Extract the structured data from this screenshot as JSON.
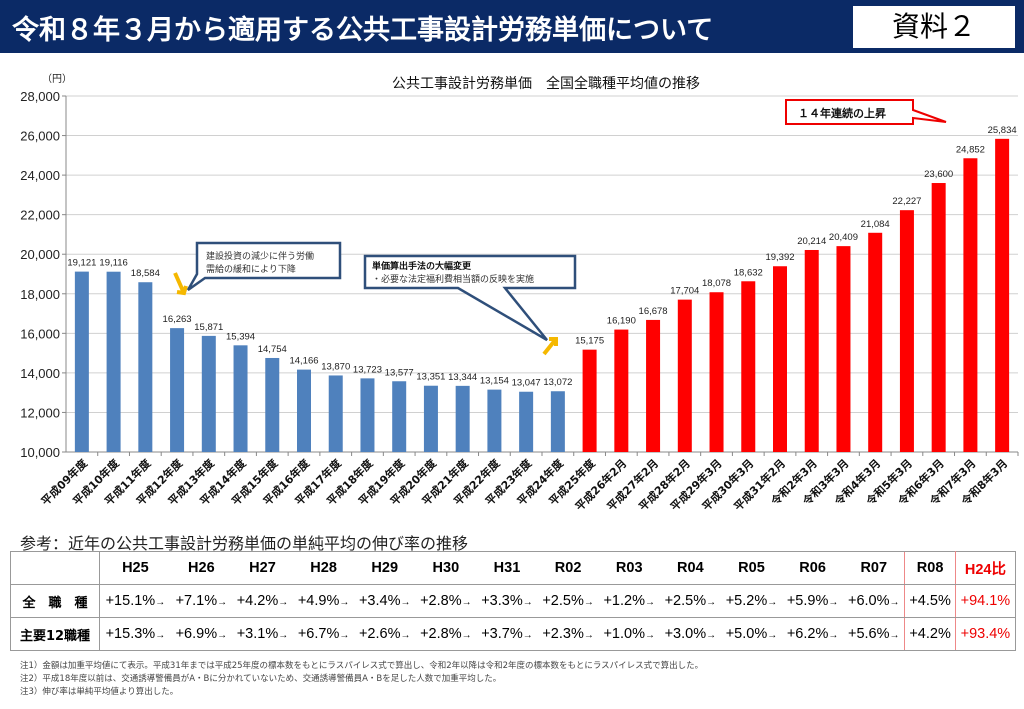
{
  "header": {
    "title": "令和８年３月から適用する公共工事設計労務単価について",
    "badge": "資料２"
  },
  "chart_data": {
    "type": "bar",
    "title": "公共工事設計労務単価　全国全職種平均値の推移",
    "ylabel": "（円）",
    "ylim": [
      10000,
      28000
    ],
    "yticks": [
      "10,000",
      "12,000",
      "14,000",
      "16,000",
      "18,000",
      "20,000",
      "22,000",
      "24,000",
      "26,000",
      "28,000"
    ],
    "grid": true,
    "categories": [
      "平成09年度",
      "平成10年度",
      "平成11年度",
      "平成12年度",
      "平成13年度",
      "平成14年度",
      "平成15年度",
      "平成16年度",
      "平成17年度",
      "平成18年度",
      "平成19年度",
      "平成20年度",
      "平成21年度",
      "平成22年度",
      "平成23年度",
      "平成24年度",
      "平成25年度",
      "平成26年2月",
      "平成27年2月",
      "平成28年2月",
      "平成29年3月",
      "平成30年3月",
      "平成31年2月",
      "令和2年3月",
      "令和3年3月",
      "令和4年3月",
      "令和5年3月",
      "令和6年3月",
      "令和7年3月",
      "令和8年3月"
    ],
    "values": [
      19121,
      19116,
      18584,
      16263,
      15871,
      15394,
      14754,
      14166,
      13870,
      13723,
      13577,
      13351,
      13344,
      13154,
      13047,
      13072,
      15175,
      16190,
      16678,
      17704,
      18078,
      18632,
      19392,
      20214,
      20409,
      21084,
      22227,
      23600,
      24852,
      25834
    ],
    "labels": [
      "19,121",
      "19,116",
      "18,584",
      "16,263",
      "15,871",
      "15,394",
      "14,754",
      "14,166",
      "13,870",
      "13,723",
      "13,577",
      "13,351",
      "13,344",
      "13,154",
      "13,047",
      "13,072",
      "15,175",
      "16,190",
      "16,678",
      "17,704",
      "18,078",
      "18,632",
      "19,392",
      "20,214",
      "20,409",
      "21,084",
      "22,227",
      "23,600",
      "24,852",
      "25,834"
    ],
    "colors": {
      "before": "#4f81bd",
      "after": "#ff0000",
      "arrow": "#f5b800"
    },
    "annotations": {
      "decline": "建設投資の減少に伴う労働需給の緩和により下降",
      "decline_lines": [
        "建設投資の減少に伴う労働",
        "需給の緩和により下降"
      ],
      "method_title": "単価算出手法の大幅変更",
      "method_body": "・必要な法定福利費相当額の反映を実施",
      "rise": "１４年連続の上昇"
    }
  },
  "reference": {
    "title": "参考：近年の公共工事設計労務単価の単純平均の伸び率の推移",
    "columns": [
      "H25",
      "H26",
      "H27",
      "H28",
      "H29",
      "H30",
      "H31",
      "R02",
      "R03",
      "R04",
      "R05",
      "R06",
      "R07",
      "R08",
      "H24比"
    ],
    "rows": [
      {
        "label": "全　職　種",
        "values": [
          "+15.1%",
          "+7.1%",
          "+4.2%",
          "+4.9%",
          "+3.4%",
          "+2.8%",
          "+3.3%",
          "+2.5%",
          "+1.2%",
          "+2.5%",
          "+5.2%",
          "+5.9%",
          "+6.0%",
          "+4.5%",
          "+94.1%"
        ]
      },
      {
        "label": "主要12職種",
        "values": [
          "+15.3%",
          "+6.9%",
          "+3.1%",
          "+6.7%",
          "+2.6%",
          "+2.8%",
          "+3.7%",
          "+2.3%",
          "+1.0%",
          "+3.0%",
          "+5.0%",
          "+6.2%",
          "+5.6%",
          "+4.2%",
          "+93.4%"
        ]
      }
    ]
  },
  "notes": [
    "注1）金額は加重平均値にて表示。平成31年までは平成25年度の標本数をもとにラスパイレス式で算出し、令和2年以降は令和2年度の標本数をもとにラスパイレス式で算出した。",
    "注2）平成18年度以前は、交通誘導警備員がA・Bに分かれていないため、交通誘導警備員A・Bを足した人数で加重平均した。",
    "注3）伸び率は単純平均値より算出した。"
  ]
}
